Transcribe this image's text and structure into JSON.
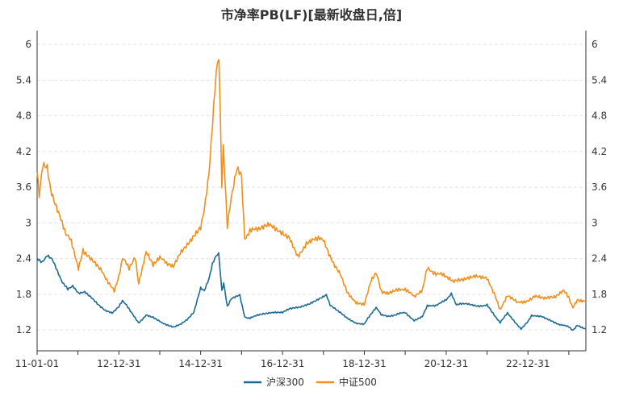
{
  "chart_data": {
    "type": "line",
    "title": "市净率PB(LF)[最新收盘日,倍]",
    "xlabel": "",
    "ylabel": "",
    "x_ticks": [
      "11-01-01",
      "12-12-31",
      "14-12-31",
      "16-12-31",
      "18-12-31",
      "20-12-31",
      "22-12-31"
    ],
    "x_range": [
      "2011-01-01",
      "2024-05-31"
    ],
    "y_ticks": [
      1.2,
      1.8,
      2.4,
      3,
      3.6,
      4.2,
      4.8,
      5.4,
      6
    ],
    "ylim": [
      0.85,
      6.15
    ],
    "grid": true,
    "legend_position": "bottom",
    "series": [
      {
        "name": "沪深300",
        "color": "#1d6a96",
        "points": [
          [
            "2011-01-01",
            2.4
          ],
          [
            "2011-02-15",
            2.35
          ],
          [
            "2011-04-01",
            2.45
          ],
          [
            "2011-05-15",
            2.38
          ],
          [
            "2011-07-01",
            2.2
          ],
          [
            "2011-08-15",
            2.0
          ],
          [
            "2011-10-01",
            1.88
          ],
          [
            "2011-11-15",
            1.95
          ],
          [
            "2012-01-05",
            1.82
          ],
          [
            "2012-03-01",
            1.85
          ],
          [
            "2012-05-01",
            1.75
          ],
          [
            "2012-07-01",
            1.62
          ],
          [
            "2012-09-01",
            1.52
          ],
          [
            "2012-11-01",
            1.48
          ],
          [
            "2012-12-31",
            1.6
          ],
          [
            "2013-02-01",
            1.7
          ],
          [
            "2013-04-01",
            1.55
          ],
          [
            "2013-06-25",
            1.32
          ],
          [
            "2013-09-01",
            1.45
          ],
          [
            "2013-11-01",
            1.42
          ],
          [
            "2014-01-01",
            1.35
          ],
          [
            "2014-03-01",
            1.28
          ],
          [
            "2014-05-01",
            1.25
          ],
          [
            "2014-07-01",
            1.3
          ],
          [
            "2014-09-01",
            1.38
          ],
          [
            "2014-11-01",
            1.5
          ],
          [
            "2014-12-31",
            1.9
          ],
          [
            "2015-02-01",
            1.85
          ],
          [
            "2015-03-15",
            2.05
          ],
          [
            "2015-04-15",
            2.3
          ],
          [
            "2015-05-20",
            2.45
          ],
          [
            "2015-06-10",
            2.48
          ],
          [
            "2015-07-08",
            1.85
          ],
          [
            "2015-07-25",
            2.0
          ],
          [
            "2015-08-26",
            1.6
          ],
          [
            "2015-10-01",
            1.72
          ],
          [
            "2015-12-15",
            1.78
          ],
          [
            "2016-01-28",
            1.42
          ],
          [
            "2016-03-15",
            1.4
          ],
          [
            "2016-06-01",
            1.45
          ],
          [
            "2016-09-01",
            1.48
          ],
          [
            "2016-12-31",
            1.5
          ],
          [
            "2017-03-01",
            1.55
          ],
          [
            "2017-06-01",
            1.58
          ],
          [
            "2017-09-01",
            1.65
          ],
          [
            "2017-11-15",
            1.72
          ],
          [
            "2018-01-26",
            1.8
          ],
          [
            "2018-03-01",
            1.62
          ],
          [
            "2018-06-01",
            1.5
          ],
          [
            "2018-08-01",
            1.4
          ],
          [
            "2018-10-15",
            1.32
          ],
          [
            "2018-12-31",
            1.3
          ],
          [
            "2019-02-01",
            1.4
          ],
          [
            "2019-04-15",
            1.58
          ],
          [
            "2019-06-01",
            1.45
          ],
          [
            "2019-08-01",
            1.42
          ],
          [
            "2019-10-01",
            1.45
          ],
          [
            "2019-12-31",
            1.5
          ],
          [
            "2020-03-20",
            1.35
          ],
          [
            "2020-06-01",
            1.42
          ],
          [
            "2020-07-15",
            1.6
          ],
          [
            "2020-10-01",
            1.62
          ],
          [
            "2020-12-31",
            1.7
          ],
          [
            "2021-02-15",
            1.82
          ],
          [
            "2021-04-01",
            1.62
          ],
          [
            "2021-07-01",
            1.65
          ],
          [
            "2021-10-01",
            1.6
          ],
          [
            "2021-12-31",
            1.62
          ],
          [
            "2022-03-15",
            1.42
          ],
          [
            "2022-04-26",
            1.32
          ],
          [
            "2022-07-01",
            1.48
          ],
          [
            "2022-10-31",
            1.22
          ],
          [
            "2022-12-31",
            1.35
          ],
          [
            "2023-02-01",
            1.45
          ],
          [
            "2023-05-01",
            1.42
          ],
          [
            "2023-08-01",
            1.35
          ],
          [
            "2023-10-01",
            1.3
          ],
          [
            "2023-12-31",
            1.25
          ],
          [
            "2024-02-05",
            1.2
          ],
          [
            "2024-03-15",
            1.28
          ],
          [
            "2024-05-31",
            1.22
          ]
        ]
      },
      {
        "name": "中证500",
        "color": "#f28f1c",
        "points": [
          [
            "2011-01-01",
            3.9
          ],
          [
            "2011-01-20",
            3.45
          ],
          [
            "2011-02-20",
            3.95
          ],
          [
            "2011-04-01",
            3.9
          ],
          [
            "2011-05-01",
            3.55
          ],
          [
            "2011-06-20",
            3.3
          ],
          [
            "2011-08-01",
            3.1
          ],
          [
            "2011-09-15",
            2.8
          ],
          [
            "2011-11-01",
            2.7
          ],
          [
            "2012-01-05",
            2.25
          ],
          [
            "2012-02-15",
            2.55
          ],
          [
            "2012-04-01",
            2.45
          ],
          [
            "2012-06-01",
            2.35
          ],
          [
            "2012-08-01",
            2.2
          ],
          [
            "2012-09-15",
            2.05
          ],
          [
            "2012-11-20",
            1.85
          ],
          [
            "2012-12-31",
            2.1
          ],
          [
            "2013-02-01",
            2.4
          ],
          [
            "2013-04-01",
            2.25
          ],
          [
            "2013-05-25",
            2.45
          ],
          [
            "2013-06-25",
            2.0
          ],
          [
            "2013-09-01",
            2.5
          ],
          [
            "2013-11-01",
            2.3
          ],
          [
            "2014-01-01",
            2.45
          ],
          [
            "2014-03-01",
            2.3
          ],
          [
            "2014-05-01",
            2.25
          ],
          [
            "2014-07-01",
            2.5
          ],
          [
            "2014-09-01",
            2.65
          ],
          [
            "2014-11-01",
            2.8
          ],
          [
            "2014-12-31",
            2.9
          ],
          [
            "2015-02-01",
            3.2
          ],
          [
            "2015-03-15",
            3.8
          ],
          [
            "2015-04-15",
            4.6
          ],
          [
            "2015-05-20",
            5.6
          ],
          [
            "2015-06-12",
            5.85
          ],
          [
            "2015-07-08",
            3.6
          ],
          [
            "2015-07-22",
            4.3
          ],
          [
            "2015-08-26",
            2.95
          ],
          [
            "2015-10-01",
            3.4
          ],
          [
            "2015-11-20",
            3.9
          ],
          [
            "2015-12-31",
            3.8
          ],
          [
            "2016-01-28",
            2.75
          ],
          [
            "2016-03-15",
            2.85
          ],
          [
            "2016-06-01",
            2.9
          ],
          [
            "2016-09-01",
            2.95
          ],
          [
            "2016-12-31",
            2.85
          ],
          [
            "2017-03-01",
            2.75
          ],
          [
            "2017-05-15",
            2.45
          ],
          [
            "2017-08-01",
            2.65
          ],
          [
            "2017-10-01",
            2.75
          ],
          [
            "2017-12-31",
            2.7
          ],
          [
            "2018-02-08",
            2.5
          ],
          [
            "2018-04-01",
            2.3
          ],
          [
            "2018-06-01",
            2.15
          ],
          [
            "2018-08-01",
            1.85
          ],
          [
            "2018-10-18",
            1.65
          ],
          [
            "2018-12-31",
            1.62
          ],
          [
            "2019-03-01",
            2.05
          ],
          [
            "2019-04-15",
            2.15
          ],
          [
            "2019-06-01",
            1.85
          ],
          [
            "2019-08-01",
            1.8
          ],
          [
            "2019-10-01",
            1.85
          ],
          [
            "2019-12-31",
            1.9
          ],
          [
            "2020-03-20",
            1.75
          ],
          [
            "2020-06-01",
            1.85
          ],
          [
            "2020-07-15",
            2.25
          ],
          [
            "2020-10-01",
            2.15
          ],
          [
            "2020-12-31",
            2.1
          ],
          [
            "2021-03-01",
            2.0
          ],
          [
            "2021-06-01",
            2.05
          ],
          [
            "2021-09-15",
            2.1
          ],
          [
            "2021-12-31",
            2.05
          ],
          [
            "2022-03-15",
            1.75
          ],
          [
            "2022-04-26",
            1.52
          ],
          [
            "2022-07-01",
            1.78
          ],
          [
            "2022-10-01",
            1.65
          ],
          [
            "2022-12-31",
            1.7
          ],
          [
            "2023-03-01",
            1.78
          ],
          [
            "2023-06-01",
            1.72
          ],
          [
            "2023-09-01",
            1.75
          ],
          [
            "2023-11-15",
            1.85
          ],
          [
            "2023-12-31",
            1.75
          ],
          [
            "2024-02-05",
            1.58
          ],
          [
            "2024-03-15",
            1.72
          ],
          [
            "2024-05-31",
            1.68
          ]
        ]
      }
    ]
  }
}
